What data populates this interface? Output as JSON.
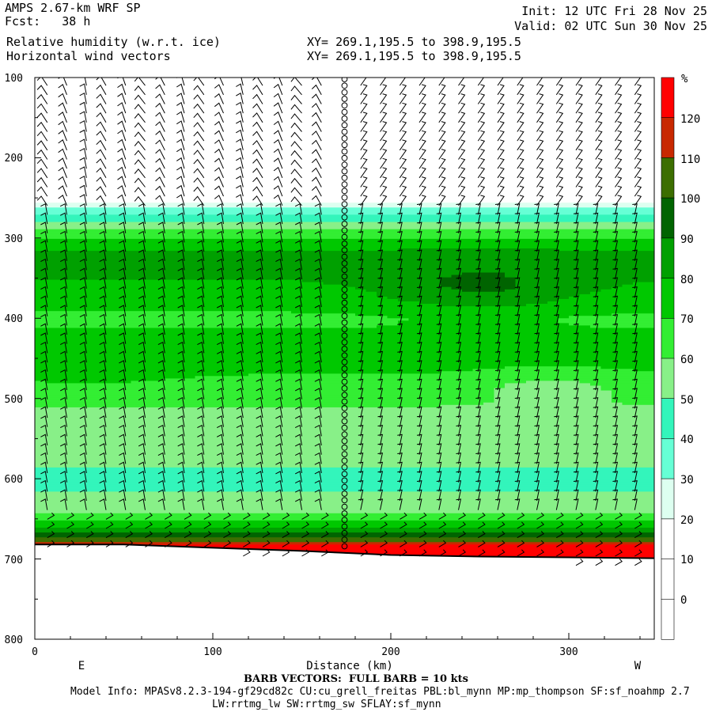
{
  "header": {
    "model": "AMPS 2.67-km WRF SP",
    "fcst": "Fcst:   38 h",
    "field1": "Relative humidity (w.r.t. ice)",
    "field2": "Horizontal wind vectors",
    "xy1": "XY= 269.1,195.5 to 398.9,195.5",
    "xy2": "XY= 269.1,195.5 to 398.9,195.5",
    "init": "Init: 12 UTC Fri 28 Nov 25",
    "valid": "Valid: 02 UTC Sun 30 Nov 25"
  },
  "footer": {
    "barb": "BARB VECTORS:  FULL BARB = 10 kts",
    "model_info": "Model Info: MPASv8.2.3-194-gf29cd82c CU:cu_grell_freitas PBL:bl_mynn MP:mp_thompson SF:sf_noahmp 2.7",
    "model_info2": "LW:rrtmg_lw SW:rrtmg_sw SFLAY:sf_mynn"
  },
  "colors": {
    "bands": [
      "#ffffff",
      "#ffffff",
      "#ffffff",
      "#ddfff0",
      "#66ffd5",
      "#33f5bb",
      "#88f088",
      "#33ee33",
      "#00c800",
      "#00a000",
      "#006400",
      "#3c6e00",
      "#c82800",
      "#ff0000"
    ]
  },
  "chart_data": {
    "type": "contour",
    "xlabel": "Distance (km)",
    "ylabel": "",
    "xlim": [
      0,
      348
    ],
    "ylim": [
      800,
      100
    ],
    "x_ticks": [
      "0",
      "100",
      "200",
      "300"
    ],
    "y_ticks": [
      "100",
      "200",
      "300",
      "400",
      "500",
      "600",
      "700",
      "800"
    ],
    "left_end_label": "E",
    "right_end_label": "W",
    "colorbar_unit": "%",
    "colorbar_levels": [
      "0",
      "10",
      "20",
      "30",
      "40",
      "50",
      "60",
      "70",
      "80",
      "90",
      "100",
      "110",
      "120"
    ],
    "rh_profile": [
      {
        "p": 100,
        "rh": 0
      },
      {
        "p": 250,
        "rh": 5
      },
      {
        "p": 265,
        "rh": 35
      },
      {
        "p": 275,
        "rh": 45
      },
      {
        "p": 290,
        "rh": 60
      },
      {
        "p": 310,
        "rh": 78
      },
      {
        "p": 330,
        "rh": 85
      },
      {
        "p": 360,
        "rh": 78
      },
      {
        "p": 400,
        "rh": 68
      },
      {
        "p": 440,
        "rh": 74
      },
      {
        "p": 470,
        "rh": 70
      },
      {
        "p": 510,
        "rh": 60
      },
      {
        "p": 560,
        "rh": 55
      },
      {
        "p": 600,
        "rh": 47
      },
      {
        "p": 640,
        "rh": 55
      },
      {
        "p": 660,
        "rh": 80
      },
      {
        "p": 672,
        "rh": 95
      },
      {
        "p": 685,
        "rh": 125
      }
    ],
    "terrain": [
      {
        "x": 0,
        "p": 682
      },
      {
        "x": 50,
        "p": 682
      },
      {
        "x": 100,
        "p": 686
      },
      {
        "x": 150,
        "p": 690
      },
      {
        "x": 200,
        "p": 695
      },
      {
        "x": 250,
        "p": 697
      },
      {
        "x": 300,
        "p": 698
      },
      {
        "x": 348,
        "p": 699
      }
    ],
    "data_gap_x": 174
  }
}
